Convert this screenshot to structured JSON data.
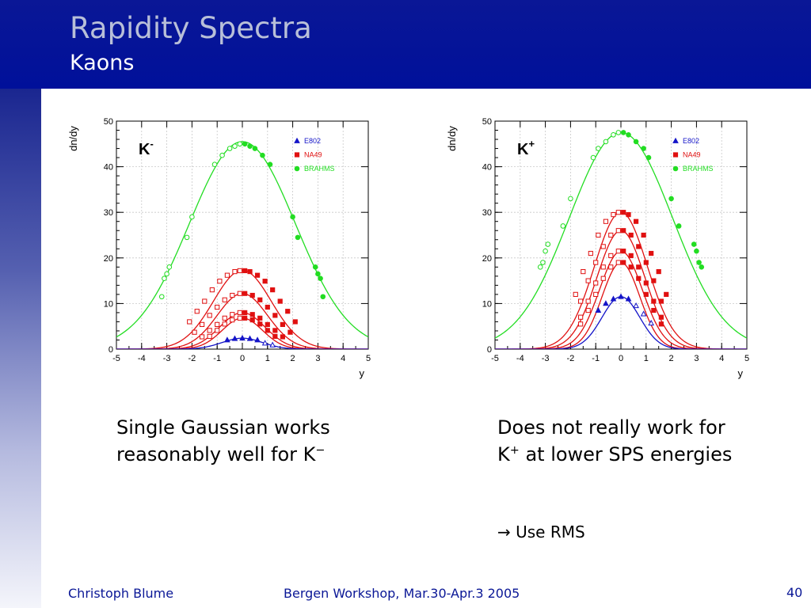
{
  "slide": {
    "title": "Rapidity Spectra",
    "subtitle": "Kaons",
    "caption_left": {
      "text": "Single Gaussian works reasonably well for K",
      "sup": "−"
    },
    "caption_right": {
      "text_a": "Does not really work for K",
      "sup": "+",
      "text_b": " at lower SPS energies"
    },
    "note": {
      "arrow": "→",
      "text": " Use RMS"
    },
    "footer": {
      "author": "Christoph Blume",
      "event": "Bergen Workshop, Mar.30-Apr.3 2005",
      "page": "40"
    }
  },
  "colors": {
    "header": "#0a1796",
    "blue": "#1414c8",
    "red": "#e01010",
    "green": "#22dd22"
  },
  "chart_data": [
    {
      "type": "scatter",
      "panel_label": {
        "main": "K",
        "sup": "-"
      },
      "xlabel": "y",
      "ylabel": "dn/dy",
      "xlim": [
        -5,
        5
      ],
      "ylim": [
        0,
        50
      ],
      "xticks": [
        "-5",
        "-4",
        "-3",
        "-2",
        "-1",
        "0",
        "1",
        "2",
        "3",
        "4",
        "5"
      ],
      "yticks": [
        "0",
        "10",
        "20",
        "30",
        "40",
        "50"
      ],
      "legend": [
        {
          "name": "E802",
          "color": "#1414c8",
          "marker": "triangle"
        },
        {
          "name": "NA49",
          "color": "#e01010",
          "marker": "square"
        },
        {
          "name": "BRAHMS",
          "color": "#22dd22",
          "marker": "circle"
        }
      ],
      "legend_position": "top-right",
      "series": [
        {
          "group": "BRAHMS",
          "color": "#22dd22",
          "amp": 45.5,
          "sigma": 2.1,
          "filled_x": [
            0.1,
            0.3,
            0.5,
            0.8,
            1.1,
            2.0,
            2.2,
            2.9,
            3.0,
            3.1,
            3.2
          ],
          "filled_y": [
            45,
            44.5,
            44,
            42.5,
            40.5,
            29,
            24.5,
            18,
            16.5,
            15.5,
            11.5
          ],
          "open_x": [
            -0.1,
            -0.3,
            -0.5,
            -0.8,
            -1.1,
            -2.0,
            -2.2,
            -2.9,
            -3.0,
            -3.1,
            -3.2
          ],
          "open_y": [
            45,
            44.5,
            44,
            42.5,
            40.5,
            29,
            24.5,
            18,
            16.5,
            15.5,
            11.5
          ]
        },
        {
          "group": "NA49",
          "color": "#e01010",
          "amp": 17.3,
          "sigma": 1.15,
          "filled_x": [
            0.1,
            0.3,
            0.6,
            0.9,
            1.2,
            1.5,
            1.8,
            2.1
          ],
          "filled_y": [
            17.2,
            17,
            16.2,
            14.9,
            13,
            10.5,
            8.3,
            6
          ],
          "open_x": [
            -0.1,
            -0.3,
            -0.6,
            -0.9,
            -1.2,
            -1.5,
            -1.8,
            -2.1
          ],
          "open_y": [
            17.2,
            17,
            16.2,
            14.9,
            13,
            10.5,
            8.3,
            6
          ]
        },
        {
          "group": "NA49",
          "color": "#e01010",
          "amp": 12.2,
          "sigma": 1.0,
          "filled_x": [
            0.1,
            0.4,
            0.7,
            1.0,
            1.3,
            1.6,
            1.9
          ],
          "filled_y": [
            12.2,
            11.8,
            10.8,
            9.2,
            7.4,
            5.4,
            3.7
          ],
          "open_x": [
            -0.1,
            -0.4,
            -0.7,
            -1.0,
            -1.3,
            -1.6,
            -1.9
          ],
          "open_y": [
            12.2,
            11.8,
            10.8,
            9.2,
            7.4,
            5.4,
            3.7
          ]
        },
        {
          "group": "NA49",
          "color": "#e01010",
          "amp": 8.0,
          "sigma": 0.9,
          "filled_x": [
            0.1,
            0.4,
            0.7,
            1.0,
            1.3,
            1.6
          ],
          "filled_y": [
            8,
            7.6,
            6.8,
            5.4,
            4.1,
            2.7
          ],
          "open_x": [
            -0.1,
            -0.4,
            -0.7,
            -1.0,
            -1.3,
            -1.6
          ],
          "open_y": [
            8,
            7.6,
            6.8,
            5.4,
            4.1,
            2.7
          ]
        },
        {
          "group": "NA49",
          "color": "#e01010",
          "amp": 6.8,
          "sigma": 0.8,
          "filled_x": [
            0.1,
            0.4,
            0.7,
            1.0,
            1.3
          ],
          "filled_y": [
            6.8,
            6.4,
            5.5,
            4.1,
            2.8
          ],
          "open_x": [
            -0.1,
            -0.4,
            -0.7,
            -1.0,
            -1.3
          ],
          "open_y": [
            6.8,
            6.4,
            5.5,
            4.1,
            2.8
          ]
        },
        {
          "group": "E802",
          "color": "#1414c8",
          "amp": 2.4,
          "sigma": 0.8,
          "filled_x": [
            -0.6,
            -0.3,
            0,
            0.3,
            0.6
          ],
          "filled_y": [
            2.0,
            2.3,
            2.4,
            2.3,
            2.0
          ],
          "open_x": [
            0.9,
            1.2
          ],
          "open_y": [
            1.3,
            0.9
          ]
        }
      ]
    },
    {
      "type": "scatter",
      "panel_label": {
        "main": "K",
        "sup": "+"
      },
      "xlabel": "y",
      "ylabel": "dn/dy",
      "xlim": [
        -5,
        5
      ],
      "ylim": [
        0,
        50
      ],
      "xticks": [
        "-5",
        "-4",
        "-3",
        "-2",
        "-1",
        "0",
        "1",
        "2",
        "3",
        "4",
        "5"
      ],
      "yticks": [
        "0",
        "10",
        "20",
        "30",
        "40",
        "50"
      ],
      "legend": [
        {
          "name": "E802",
          "color": "#1414c8",
          "marker": "triangle"
        },
        {
          "name": "NA49",
          "color": "#e01010",
          "marker": "square"
        },
        {
          "name": "BRAHMS",
          "color": "#22dd22",
          "marker": "circle"
        }
      ],
      "legend_position": "top-right",
      "series": [
        {
          "group": "BRAHMS",
          "color": "#22dd22",
          "amp": 47.5,
          "sigma": 2.05,
          "filled_x": [
            0.1,
            0.3,
            0.6,
            0.9,
            1.1,
            2.0,
            2.3,
            2.9,
            3.0,
            3.1,
            3.2
          ],
          "filled_y": [
            47.5,
            47,
            45.5,
            44,
            42,
            33,
            27,
            23,
            21.5,
            19,
            18
          ],
          "open_x": [
            -0.1,
            -0.3,
            -0.6,
            -0.9,
            -1.1,
            -2.0,
            -2.3,
            -2.9,
            -3.0,
            -3.1,
            -3.2
          ],
          "open_y": [
            47.5,
            47,
            45.5,
            44,
            42,
            33,
            27,
            23,
            21.5,
            19,
            18
          ]
        },
        {
          "group": "NA49",
          "color": "#e01010",
          "amp": 30,
          "sigma": 1.05,
          "filled_x": [
            0.1,
            0.3,
            0.6,
            0.9,
            1.2,
            1.5,
            1.8
          ],
          "filled_y": [
            30,
            29.5,
            28,
            25,
            21,
            17,
            12
          ],
          "open_x": [
            -0.1,
            -0.3,
            -0.6,
            -0.9,
            -1.2,
            -1.5,
            -1.8
          ],
          "open_y": [
            30,
            29.5,
            28,
            25,
            21,
            17,
            12
          ]
        },
        {
          "group": "NA49",
          "color": "#e01010",
          "amp": 26,
          "sigma": 0.95,
          "filled_x": [
            0.1,
            0.4,
            0.7,
            1.0,
            1.3,
            1.6
          ],
          "filled_y": [
            26,
            25,
            22.5,
            19,
            15,
            10.5
          ],
          "open_x": [
            -0.1,
            -0.4,
            -0.7,
            -1.0,
            -1.3,
            -1.6
          ],
          "open_y": [
            26,
            25,
            22.5,
            19,
            15,
            10.5
          ]
        },
        {
          "group": "NA49",
          "color": "#e01010",
          "amp": 21.5,
          "sigma": 0.85,
          "filled_x": [
            0.1,
            0.4,
            0.7,
            1.0,
            1.3,
            1.6
          ],
          "filled_y": [
            21.5,
            20.5,
            18,
            14.5,
            10.5,
            7
          ],
          "open_x": [
            -0.1,
            -0.4,
            -0.7,
            -1.0,
            -1.3,
            -1.6
          ],
          "open_y": [
            21.5,
            20.5,
            18,
            14.5,
            10.5,
            7
          ]
        },
        {
          "group": "NA49",
          "color": "#e01010",
          "amp": 19,
          "sigma": 0.75,
          "filled_x": [
            0.1,
            0.4,
            0.7,
            1.0,
            1.3,
            1.6
          ],
          "filled_y": [
            19,
            18,
            15.5,
            12,
            8.5,
            5.5
          ],
          "open_x": [
            -0.1,
            -0.4,
            -0.7,
            -1.0,
            -1.3,
            -1.6
          ],
          "open_y": [
            19,
            18,
            15.5,
            12,
            8.5,
            5.5
          ]
        },
        {
          "group": "E802",
          "color": "#1414c8",
          "amp": 11.5,
          "sigma": 0.75,
          "filled_x": [
            -0.9,
            -0.6,
            -0.3,
            0,
            0.3
          ],
          "filled_y": [
            8.5,
            10,
            11,
            11.5,
            11
          ],
          "open_x": [
            0.6,
            0.9,
            1.2
          ],
          "open_y": [
            9.5,
            7.7,
            5.7
          ]
        }
      ]
    }
  ]
}
